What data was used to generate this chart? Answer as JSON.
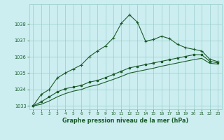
{
  "bg_color": "#cceef0",
  "grid_color": "#99cccc",
  "line_color": "#1a5c2a",
  "title": "Graphe pression niveau de la mer (hPa)",
  "xlim": [
    -0.5,
    23.5
  ],
  "ylim": [
    1032.8,
    1039.2
  ],
  "yticks": [
    1033,
    1034,
    1035,
    1036,
    1037,
    1038
  ],
  "xticks": [
    0,
    1,
    2,
    3,
    4,
    5,
    6,
    7,
    8,
    9,
    10,
    11,
    12,
    13,
    14,
    15,
    16,
    17,
    18,
    19,
    20,
    21,
    22,
    23
  ],
  "series1_x": [
    0,
    1,
    2,
    3,
    4,
    5,
    6,
    7,
    8,
    9,
    10,
    11,
    12,
    13,
    14,
    15,
    16,
    17,
    18,
    19,
    20,
    21,
    22,
    23
  ],
  "series1_y": [
    1033.0,
    1033.7,
    1034.0,
    1034.7,
    1035.0,
    1035.25,
    1035.5,
    1036.0,
    1036.35,
    1036.65,
    1037.15,
    1038.05,
    1038.55,
    1038.1,
    1036.95,
    1037.05,
    1037.25,
    1037.1,
    1036.75,
    1036.55,
    1036.45,
    1036.35,
    1035.85,
    1035.7
  ],
  "series2_x": [
    0,
    1,
    2,
    3,
    4,
    5,
    6,
    7,
    8,
    9,
    10,
    11,
    12,
    13,
    14,
    15,
    16,
    17,
    18,
    19,
    20,
    21,
    22,
    23
  ],
  "series2_y": [
    1033.0,
    1033.25,
    1033.55,
    1033.85,
    1034.05,
    1034.15,
    1034.25,
    1034.45,
    1034.55,
    1034.72,
    1034.92,
    1035.12,
    1035.32,
    1035.42,
    1035.52,
    1035.62,
    1035.72,
    1035.82,
    1035.92,
    1036.02,
    1036.12,
    1036.12,
    1035.72,
    1035.62
  ],
  "series3_x": [
    0,
    1,
    2,
    3,
    4,
    5,
    6,
    7,
    8,
    9,
    10,
    11,
    12,
    13,
    14,
    15,
    16,
    17,
    18,
    19,
    20,
    21,
    22,
    23
  ],
  "series3_y": [
    1033.0,
    1033.1,
    1033.3,
    1033.55,
    1033.75,
    1033.9,
    1034.0,
    1034.18,
    1034.28,
    1034.45,
    1034.62,
    1034.8,
    1035.0,
    1035.1,
    1035.2,
    1035.3,
    1035.42,
    1035.52,
    1035.62,
    1035.72,
    1035.82,
    1035.9,
    1035.6,
    1035.55
  ]
}
